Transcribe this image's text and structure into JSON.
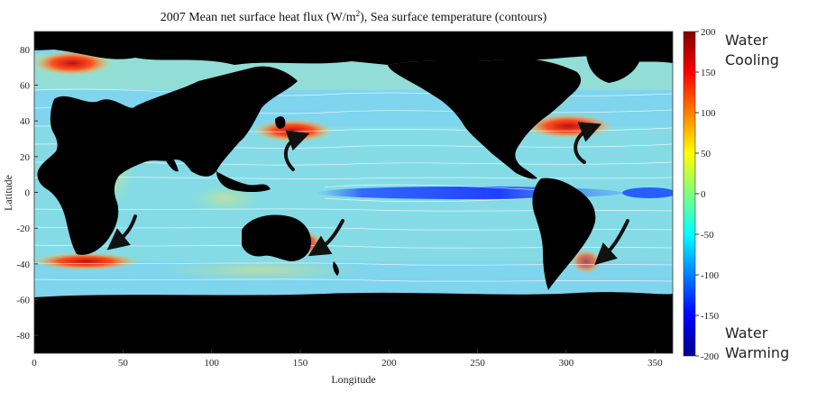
{
  "chart_data": {
    "type": "heatmap",
    "title_main": "2007 Mean net surface heat flux (W/m",
    "title_sup": "2",
    "title_rest": "), Sea surface temperature (contours)",
    "xlabel": "Longitude",
    "ylabel": "Latitude",
    "xlim": [
      0,
      360
    ],
    "ylim": [
      -90,
      90
    ],
    "xticks": [
      0,
      50,
      100,
      150,
      200,
      250,
      300,
      350
    ],
    "yticks": [
      80,
      60,
      40,
      20,
      0,
      -20,
      -40,
      -60,
      -80
    ],
    "colorbar": {
      "range": [
        -200,
        200
      ],
      "ticks": [
        200,
        150,
        100,
        50,
        0,
        -50,
        -100,
        -150,
        -200
      ],
      "colormap": "jet",
      "colors": [
        "#00008f",
        "#0000ff",
        "#0080ff",
        "#00ffff",
        "#80ff80",
        "#ffff00",
        "#ff8000",
        "#ff0000",
        "#800000"
      ]
    },
    "annotations": {
      "top": [
        "Water",
        "Cooling"
      ],
      "bottom": [
        "Water",
        "Warming"
      ]
    },
    "land_color": "#000000",
    "ocean_base_color": "#7fd4ee",
    "contour_color": "#ffffff",
    "arrow_color": "#111111"
  }
}
